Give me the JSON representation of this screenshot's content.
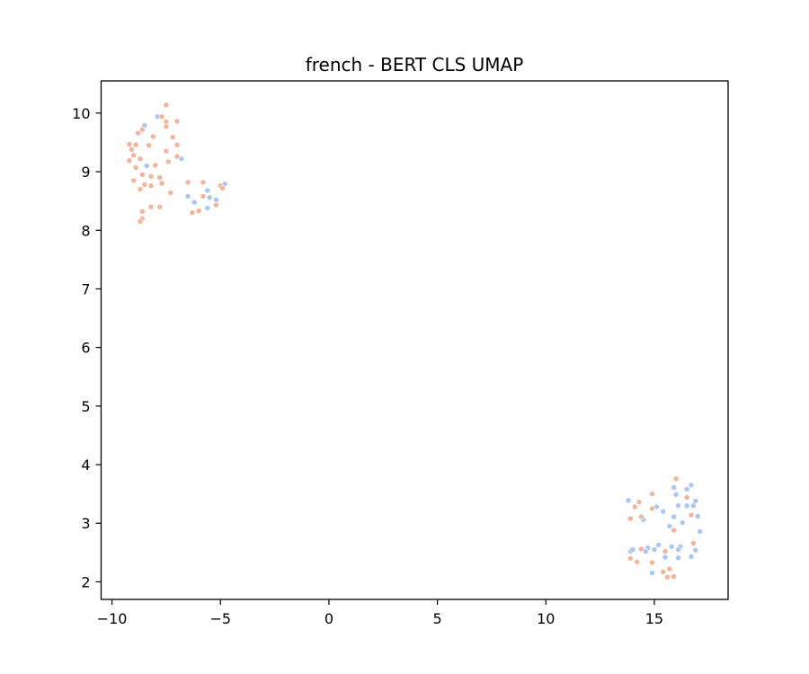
{
  "chart_data": {
    "type": "scatter",
    "title": "french - BERT CLS UMAP",
    "xlabel": "",
    "ylabel": "",
    "xlim": [
      -10.5,
      18.4
    ],
    "ylim": [
      1.7,
      10.55
    ],
    "xticks": [
      -10,
      -5,
      0,
      5,
      10,
      15
    ],
    "yticks": [
      2,
      3,
      4,
      5,
      6,
      7,
      8,
      9,
      10
    ],
    "grid": false,
    "legend": "none",
    "colors": {
      "blue": "#a9c6f7",
      "orange": "#f4b49a"
    },
    "series": [
      {
        "color": "blue",
        "points": [
          [
            -8.5,
            9.79
          ],
          [
            -7.9,
            9.94
          ],
          [
            -8.4,
            9.1
          ],
          [
            -6.8,
            9.22
          ],
          [
            -6.5,
            8.58
          ],
          [
            -6.2,
            8.48
          ],
          [
            -5.6,
            8.68
          ],
          [
            -5.5,
            8.56
          ],
          [
            -5.6,
            8.38
          ],
          [
            -5.2,
            8.52
          ],
          [
            -4.8,
            8.79
          ],
          [
            13.8,
            3.39
          ],
          [
            15.9,
            3.61
          ],
          [
            16.5,
            3.58
          ],
          [
            16.7,
            3.65
          ],
          [
            16.0,
            3.49
          ],
          [
            15.1,
            3.28
          ],
          [
            15.4,
            3.2
          ],
          [
            16.5,
            3.3
          ],
          [
            16.9,
            3.38
          ],
          [
            16.8,
            3.3
          ],
          [
            14.5,
            3.06
          ],
          [
            15.9,
            3.11
          ],
          [
            16.3,
            3.01
          ],
          [
            15.7,
            2.95
          ],
          [
            17.0,
            3.12
          ],
          [
            16.1,
            3.3
          ],
          [
            17.1,
            2.86
          ],
          [
            15.2,
            2.63
          ],
          [
            15.8,
            2.6
          ],
          [
            16.2,
            2.6
          ],
          [
            14.7,
            2.58
          ],
          [
            14.6,
            2.52
          ],
          [
            13.9,
            2.52
          ],
          [
            14.0,
            2.55
          ],
          [
            15.0,
            2.55
          ],
          [
            16.1,
            2.55
          ],
          [
            16.9,
            2.54
          ],
          [
            15.5,
            2.42
          ],
          [
            16.1,
            2.41
          ],
          [
            16.7,
            2.43
          ],
          [
            14.9,
            2.15
          ]
        ]
      },
      {
        "color": "orange",
        "points": [
          [
            -7.5,
            10.14
          ],
          [
            -7.7,
            9.94
          ],
          [
            -7.5,
            9.85
          ],
          [
            -7.0,
            9.86
          ],
          [
            -7.5,
            9.77
          ],
          [
            -8.6,
            9.72
          ],
          [
            -8.8,
            9.66
          ],
          [
            -8.1,
            9.6
          ],
          [
            -7.2,
            9.59
          ],
          [
            -9.2,
            9.47
          ],
          [
            -8.9,
            9.46
          ],
          [
            -8.3,
            9.45
          ],
          [
            -7.0,
            9.46
          ],
          [
            -9.1,
            9.38
          ],
          [
            -7.5,
            9.35
          ],
          [
            -9.0,
            9.28
          ],
          [
            -7.0,
            9.26
          ],
          [
            -8.7,
            9.22
          ],
          [
            -7.4,
            9.17
          ],
          [
            -9.2,
            9.19
          ],
          [
            -8.0,
            9.11
          ],
          [
            -8.9,
            9.07
          ],
          [
            -8.6,
            8.95
          ],
          [
            -8.2,
            8.92
          ],
          [
            -7.8,
            8.9
          ],
          [
            -9.0,
            8.85
          ],
          [
            -8.5,
            8.78
          ],
          [
            -7.7,
            8.8
          ],
          [
            -8.2,
            8.76
          ],
          [
            -8.7,
            8.7
          ],
          [
            -7.3,
            8.64
          ],
          [
            -5.8,
            8.82
          ],
          [
            -5.0,
            8.76
          ],
          [
            -4.9,
            8.72
          ],
          [
            -5.8,
            8.58
          ],
          [
            -6.5,
            8.82
          ],
          [
            -5.2,
            8.43
          ],
          [
            -8.2,
            8.4
          ],
          [
            -7.8,
            8.4
          ],
          [
            -8.6,
            8.32
          ],
          [
            -6.0,
            8.33
          ],
          [
            -6.3,
            8.3
          ],
          [
            -8.6,
            8.2
          ],
          [
            -8.7,
            8.15
          ],
          [
            16.0,
            3.76
          ],
          [
            14.9,
            3.5
          ],
          [
            16.5,
            3.44
          ],
          [
            14.3,
            3.36
          ],
          [
            14.1,
            3.28
          ],
          [
            14.9,
            3.25
          ],
          [
            16.7,
            3.14
          ],
          [
            13.9,
            3.08
          ],
          [
            14.4,
            3.11
          ],
          [
            15.9,
            2.88
          ],
          [
            16.8,
            2.66
          ],
          [
            15.5,
            2.52
          ],
          [
            14.4,
            2.56
          ],
          [
            13.9,
            2.4
          ],
          [
            14.2,
            2.34
          ],
          [
            14.9,
            2.33
          ],
          [
            15.7,
            2.22
          ],
          [
            15.4,
            2.17
          ],
          [
            15.6,
            2.08
          ],
          [
            15.9,
            2.09
          ]
        ]
      }
    ]
  }
}
